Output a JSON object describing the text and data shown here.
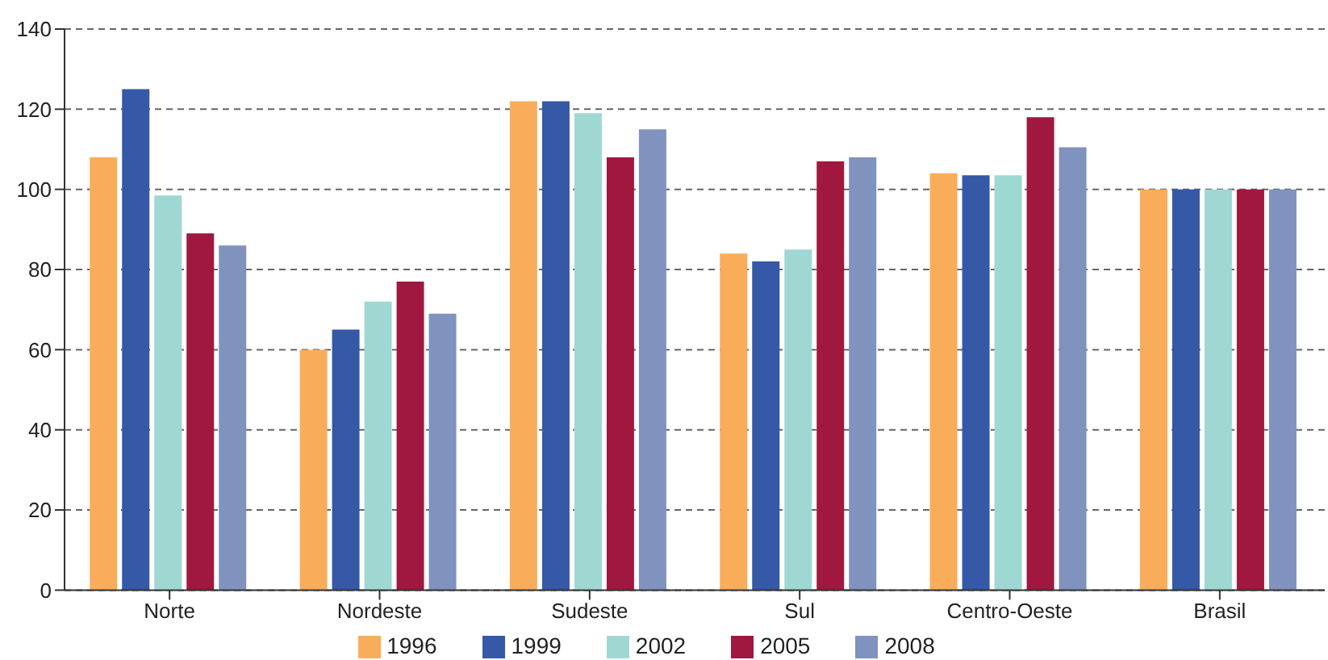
{
  "chart_data": {
    "type": "bar",
    "categories": [
      "Norte",
      "Nordeste",
      "Sudeste",
      "Sul",
      "Centro-Oeste",
      "Brasil"
    ],
    "series": [
      {
        "name": "1996",
        "color": "#f9ad5a",
        "values": [
          108,
          60,
          122,
          84,
          104,
          100
        ]
      },
      {
        "name": "1999",
        "color": "#3558a7",
        "values": [
          125,
          65,
          122,
          82,
          103.5,
          100
        ]
      },
      {
        "name": "2002",
        "color": "#9fd8d2",
        "values": [
          98.5,
          72,
          119,
          85,
          103.5,
          100
        ]
      },
      {
        "name": "2005",
        "color": "#a0173f",
        "values": [
          89,
          77,
          108,
          107,
          118,
          100
        ]
      },
      {
        "name": "2008",
        "color": "#8093bf",
        "values": [
          86,
          69,
          115,
          108,
          110.5,
          100
        ]
      }
    ],
    "ylim": [
      0,
      140
    ],
    "yticks": [
      0,
      20,
      40,
      60,
      80,
      100,
      120,
      140
    ],
    "grid": "y",
    "legend": "bottom"
  }
}
